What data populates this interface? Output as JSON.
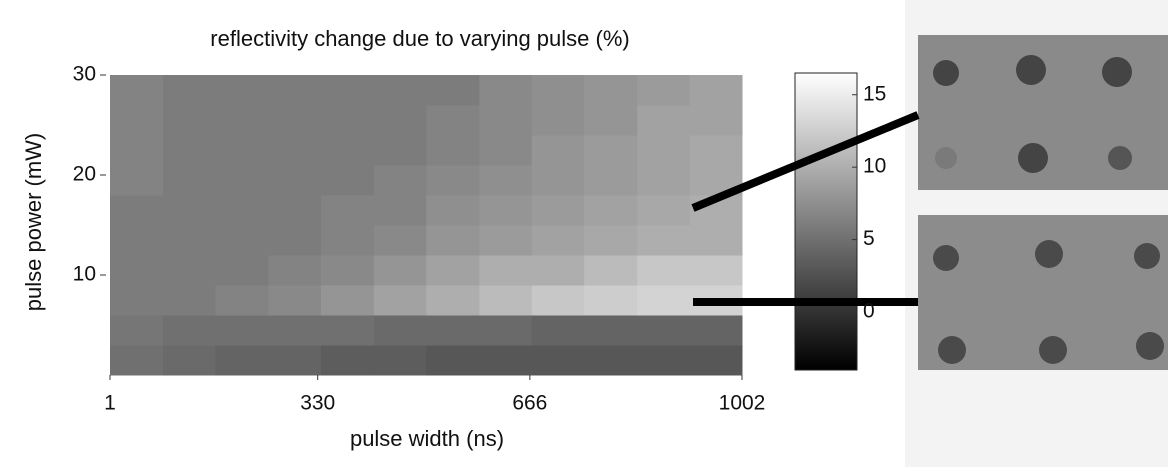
{
  "chart_data": {
    "type": "heatmap",
    "title": "reflectivity change due to varying pulse (%)",
    "xlabel": "pulse width (ns)",
    "ylabel": "pulse power (mW)",
    "xbins": [
      1,
      85,
      168,
      252,
      335,
      419,
      502,
      586,
      669,
      752,
      836,
      919,
      1002
    ],
    "ybins": [
      0,
      3,
      6,
      9,
      12,
      15,
      18,
      21,
      24,
      27,
      30
    ],
    "z": [
      [
        5,
        4.5,
        4,
        4,
        3.5,
        3.5,
        3,
        3,
        3,
        3,
        3,
        3
      ],
      [
        5.5,
        5,
        5,
        5,
        5,
        4.5,
        4.5,
        4.5,
        4,
        4,
        4,
        4
      ],
      [
        6,
        6,
        6.5,
        7,
        8,
        9,
        10,
        11,
        12,
        12.5,
        13,
        13
      ],
      [
        6,
        6,
        6,
        6.5,
        7,
        8,
        9,
        10,
        10,
        11,
        12,
        12
      ],
      [
        6,
        6,
        6,
        6,
        6.5,
        7,
        8,
        8.5,
        9,
        9.5,
        10,
        10
      ],
      [
        6,
        6,
        6,
        6,
        6.5,
        6.5,
        7.5,
        8,
        8.5,
        9,
        9.5,
        10
      ],
      [
        6.5,
        6,
        6,
        6,
        6,
        6.5,
        7,
        7.5,
        8,
        8.5,
        9,
        9.5
      ],
      [
        6.5,
        6,
        6,
        6,
        6,
        6,
        6.5,
        7,
        8,
        8.5,
        9,
        9.5
      ],
      [
        6.5,
        6,
        6,
        6,
        6,
        6,
        6.5,
        7,
        7.5,
        8,
        9,
        9
      ],
      [
        6.5,
        6,
        6,
        6,
        6,
        6,
        6,
        7,
        7.5,
        8,
        8.5,
        9
      ]
    ],
    "xlim": [
      1,
      1002
    ],
    "xticks": [
      1,
      330,
      666,
      1002
    ],
    "ylim": [
      0,
      30
    ],
    "yticks": [
      10,
      20,
      30
    ],
    "zlim": [
      -4,
      16.5
    ],
    "zticks": [
      0,
      5,
      10,
      15
    ],
    "colormap": "gray"
  }
}
